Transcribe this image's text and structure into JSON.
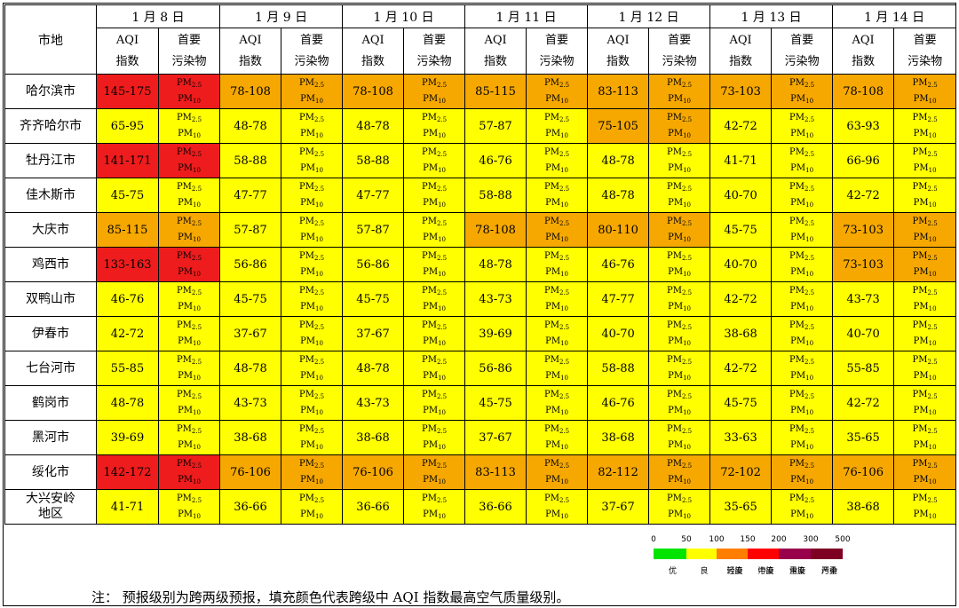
{
  "header": {
    "city_label": "市地",
    "aqi_label_1": "AQI",
    "aqi_label_2": "指数",
    "pollutant_label_1": "首要",
    "pollutant_label_2": "污染物",
    "dates": [
      "1 月 8 日",
      "1 月 9 日",
      "1 月 10 日",
      "1 月 11 日",
      "1 月 12 日",
      "1 月 13 日",
      "1 月 14 日"
    ]
  },
  "pollutant": {
    "pm": "PM",
    "pm25_sub": "2.5",
    "pm10_sub": "10"
  },
  "rows": [
    {
      "city": "哈尔滨市",
      "aqi": [
        "145-175",
        "78-108",
        "78-108",
        "85-115",
        "83-113",
        "73-103",
        "78-108"
      ],
      "level": [
        "mod",
        "light",
        "light",
        "light",
        "light",
        "light",
        "light"
      ]
    },
    {
      "city": "齐齐哈尔市",
      "aqi": [
        "65-95",
        "48-78",
        "48-78",
        "57-87",
        "75-105",
        "42-72",
        "63-93"
      ],
      "level": [
        "good",
        "good",
        "good",
        "good",
        "light",
        "good",
        "good"
      ]
    },
    {
      "city": "牡丹江市",
      "aqi": [
        "141-171",
        "58-88",
        "58-88",
        "46-76",
        "48-78",
        "41-71",
        "66-96"
      ],
      "level": [
        "mod",
        "good",
        "good",
        "good",
        "good",
        "good",
        "good"
      ]
    },
    {
      "city": "佳木斯市",
      "aqi": [
        "45-75",
        "47-77",
        "47-77",
        "58-88",
        "48-78",
        "40-70",
        "42-72"
      ],
      "level": [
        "good",
        "good",
        "good",
        "good",
        "good",
        "good",
        "good"
      ]
    },
    {
      "city": "大庆市",
      "aqi": [
        "85-115",
        "57-87",
        "57-87",
        "78-108",
        "80-110",
        "45-75",
        "73-103"
      ],
      "level": [
        "light",
        "good",
        "good",
        "light",
        "light",
        "good",
        "light"
      ]
    },
    {
      "city": "鸡西市",
      "aqi": [
        "133-163",
        "56-86",
        "56-86",
        "48-78",
        "46-76",
        "40-70",
        "73-103"
      ],
      "level": [
        "mod",
        "good",
        "good",
        "good",
        "good",
        "good",
        "light"
      ]
    },
    {
      "city": "双鸭山市",
      "aqi": [
        "46-76",
        "45-75",
        "45-75",
        "43-73",
        "47-77",
        "42-72",
        "43-73"
      ],
      "level": [
        "good",
        "good",
        "good",
        "good",
        "good",
        "good",
        "good"
      ]
    },
    {
      "city": "伊春市",
      "aqi": [
        "42-72",
        "37-67",
        "37-67",
        "39-69",
        "40-70",
        "38-68",
        "40-70"
      ],
      "level": [
        "good",
        "good",
        "good",
        "good",
        "good",
        "good",
        "good"
      ]
    },
    {
      "city": "七台河市",
      "aqi": [
        "55-85",
        "48-78",
        "48-78",
        "56-86",
        "58-88",
        "42-72",
        "55-85"
      ],
      "level": [
        "good",
        "good",
        "good",
        "good",
        "good",
        "good",
        "good"
      ]
    },
    {
      "city": "鹤岗市",
      "aqi": [
        "48-78",
        "43-73",
        "43-73",
        "45-75",
        "46-76",
        "45-75",
        "42-72"
      ],
      "level": [
        "good",
        "good",
        "good",
        "good",
        "good",
        "good",
        "good"
      ]
    },
    {
      "city": "黑河市",
      "aqi": [
        "39-69",
        "38-68",
        "38-68",
        "37-67",
        "38-68",
        "33-63",
        "35-65"
      ],
      "level": [
        "good",
        "good",
        "good",
        "good",
        "good",
        "good",
        "good"
      ]
    },
    {
      "city": "绥化市",
      "aqi": [
        "142-172",
        "76-106",
        "76-106",
        "83-113",
        "82-112",
        "72-102",
        "76-106"
      ],
      "level": [
        "mod",
        "light",
        "light",
        "light",
        "light",
        "light",
        "light"
      ]
    },
    {
      "city_line1": "大兴安岭",
      "city_line2": "地区",
      "aqi": [
        "41-71",
        "36-66",
        "36-66",
        "36-66",
        "37-67",
        "35-65",
        "38-68"
      ],
      "level": [
        "good",
        "good",
        "good",
        "good",
        "good",
        "good",
        "good"
      ]
    }
  ],
  "legend": {
    "ticks": [
      "0",
      "50",
      "100",
      "150",
      "200",
      "300",
      "500"
    ],
    "segments": [
      {
        "color": "#00e400",
        "name_1": "优",
        "name_2": ""
      },
      {
        "color": "#ffff00",
        "name_1": "良",
        "name_2": ""
      },
      {
        "color": "#ff7e00",
        "name_1": "轻度",
        "name_2": "污染"
      },
      {
        "color": "#ff0000",
        "name_1": "中度",
        "name_2": "污染"
      },
      {
        "color": "#99004c",
        "name_1": "重度",
        "name_2": "污染"
      },
      {
        "color": "#7e0023",
        "name_1": "严重",
        "name_2": "污染"
      }
    ]
  },
  "note": "注：   预报级别为跨两级预报，填充颜色代表跨级中 AQI 指数最高空气质量级别。"
}
